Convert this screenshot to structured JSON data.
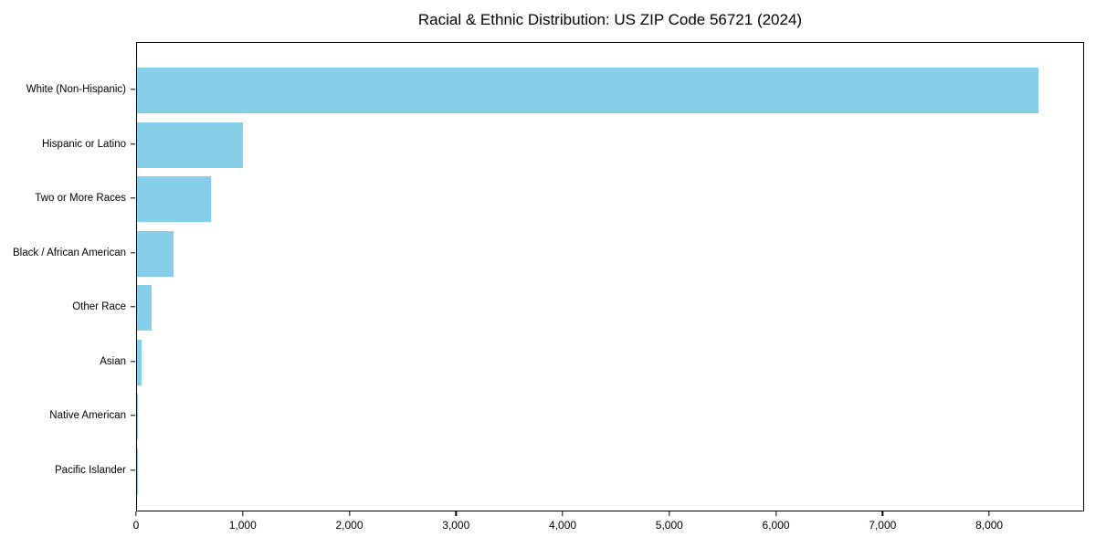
{
  "chart_data": {
    "type": "bar",
    "orientation": "horizontal",
    "title": "Racial & Ethnic Distribution: US ZIP Code 56721 (2024)",
    "categories": [
      "White (Non-Hispanic)",
      "Hispanic or Latino",
      "Two or More Races",
      "Black / African American",
      "Other Race",
      "Asian",
      "Native American",
      "Pacific Islander"
    ],
    "values": [
      8450,
      990,
      695,
      345,
      140,
      45,
      10,
      2
    ],
    "xlabel": "",
    "ylabel": "",
    "xlim": [
      0,
      8890
    ],
    "x_ticks": [
      0,
      1000,
      2000,
      3000,
      4000,
      5000,
      6000,
      7000,
      8000
    ],
    "x_tick_labels": [
      "0",
      "1,000",
      "2,000",
      "3,000",
      "4,000",
      "5,000",
      "6,000",
      "7,000",
      "8,000"
    ],
    "bar_color": "#87CEEB",
    "axis_color": "#000000",
    "background_color": "#ffffff",
    "grid": false,
    "legend": null
  }
}
